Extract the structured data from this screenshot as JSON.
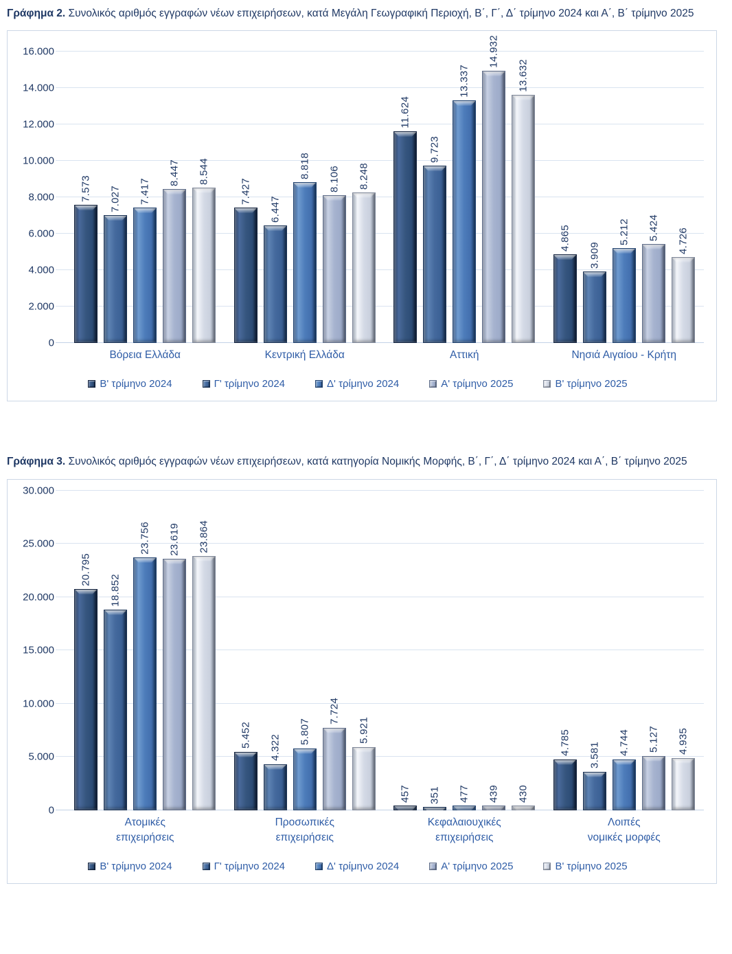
{
  "colors": {
    "text_navy": "#1F3864",
    "text_blue": "#2E5CA6",
    "gridline": "#d9e3f0",
    "chart_border": "#ccd7e6",
    "series_hex": [
      "#36567f",
      "#44699d",
      "#4d7cba",
      "#a6b3cf",
      "#d4dae6"
    ]
  },
  "figure2": {
    "title_bold": "Γράφημα 2.",
    "title_rest": " Συνολικός αριθμός εγγραφών νέων επιχειρήσεων, κατά Μεγάλη Γεωγραφική Περιοχή, Β΄, Γ΄, Δ΄ τρίμηνο 2024 και Α΄, Β΄ τρίμηνο 2025"
  },
  "figure3": {
    "title_bold": "Γράφημα 3.",
    "title_rest": " Συνολικός αριθμός εγγραφών νέων επιχειρήσεων, κατά κατηγορία Νομικής Μορφής, Β΄, Γ΄, Δ΄ τρίμηνο 2024 και Α΄, Β΄ τρίμηνο 2025"
  },
  "chart_data": [
    {
      "id": "figure2-chart",
      "type": "bar",
      "title": "Συνολικός αριθμός εγγραφών νέων επιχειρήσεων, κατά Μεγάλη Γεωγραφική Περιοχή, Β΄, Γ΄, Δ΄ τρίμηνο 2024 και Α΄, Β΄ τρίμηνο 2025",
      "categories": [
        [
          "Βόρεια Ελλάδα"
        ],
        [
          "Κεντρική Ελλάδα"
        ],
        [
          "Αττική"
        ],
        [
          "Νησιά Αιγαίου - Κρήτη"
        ]
      ],
      "series": [
        {
          "name": "Β' τρίμηνο 2024",
          "values": [
            7573,
            7427,
            11624,
            4865
          ]
        },
        {
          "name": "Γ' τρίμηνο 2024",
          "values": [
            7027,
            6447,
            9723,
            3909
          ]
        },
        {
          "name": "Δ' τρίμηνο 2024",
          "values": [
            7417,
            8818,
            13337,
            5212
          ]
        },
        {
          "name": "Α' τρίμηνο 2025",
          "values": [
            8447,
            8106,
            14932,
            5424
          ]
        },
        {
          "name": "Β' τρίμηνο 2025",
          "values": [
            8544,
            8248,
            13632,
            4726
          ]
        }
      ],
      "xlabel": "",
      "ylabel": "",
      "ylim": [
        0,
        16000
      ],
      "ytick_step": 2000,
      "ytick_labels": [
        "0",
        "2.000",
        "4.000",
        "6.000",
        "8.000",
        "10.000",
        "12.000",
        "14.000",
        "16.000"
      ],
      "grid": true,
      "data_labels": true,
      "data_label_rotation": 90,
      "legend_position": "bottom",
      "number_format": "thousands-dot"
    },
    {
      "id": "figure3-chart",
      "type": "bar",
      "title": "Συνολικός αριθμός εγγραφών νέων επιχειρήσεων, κατά κατηγορία Νομικής Μορφής, Β΄, Γ΄, Δ΄ τρίμηνο 2024 και Α΄, Β΄ τρίμηνο 2025",
      "categories": [
        [
          "Ατομικές",
          "επιχειρήσεις"
        ],
        [
          "Προσωπικές",
          "επιχειρήσεις"
        ],
        [
          "Κεφαλαιουχικές",
          "επιχειρήσεις"
        ],
        [
          "Λοιπές",
          "νομικές μορφές"
        ]
      ],
      "series": [
        {
          "name": "Β' τρίμηνο 2024",
          "values": [
            20795,
            5452,
            457,
            4785
          ]
        },
        {
          "name": "Γ' τρίμηνο 2024",
          "values": [
            18852,
            4322,
            351,
            3581
          ]
        },
        {
          "name": "Δ' τρίμηνο 2024",
          "values": [
            23756,
            5807,
            477,
            4744
          ]
        },
        {
          "name": "Α' τρίμηνο 2025",
          "values": [
            23619,
            7724,
            439,
            5127
          ]
        },
        {
          "name": "Β' τρίμηνο 2025",
          "values": [
            23864,
            5921,
            430,
            4935
          ]
        }
      ],
      "xlabel": "",
      "ylabel": "",
      "ylim": [
        0,
        30000
      ],
      "ytick_step": 5000,
      "ytick_labels": [
        "0",
        "5.000",
        "10.000",
        "15.000",
        "20.000",
        "25.000",
        "30.000"
      ],
      "grid": true,
      "data_labels": true,
      "data_label_rotation": 90,
      "legend_position": "bottom",
      "number_format": "thousands-dot"
    }
  ]
}
